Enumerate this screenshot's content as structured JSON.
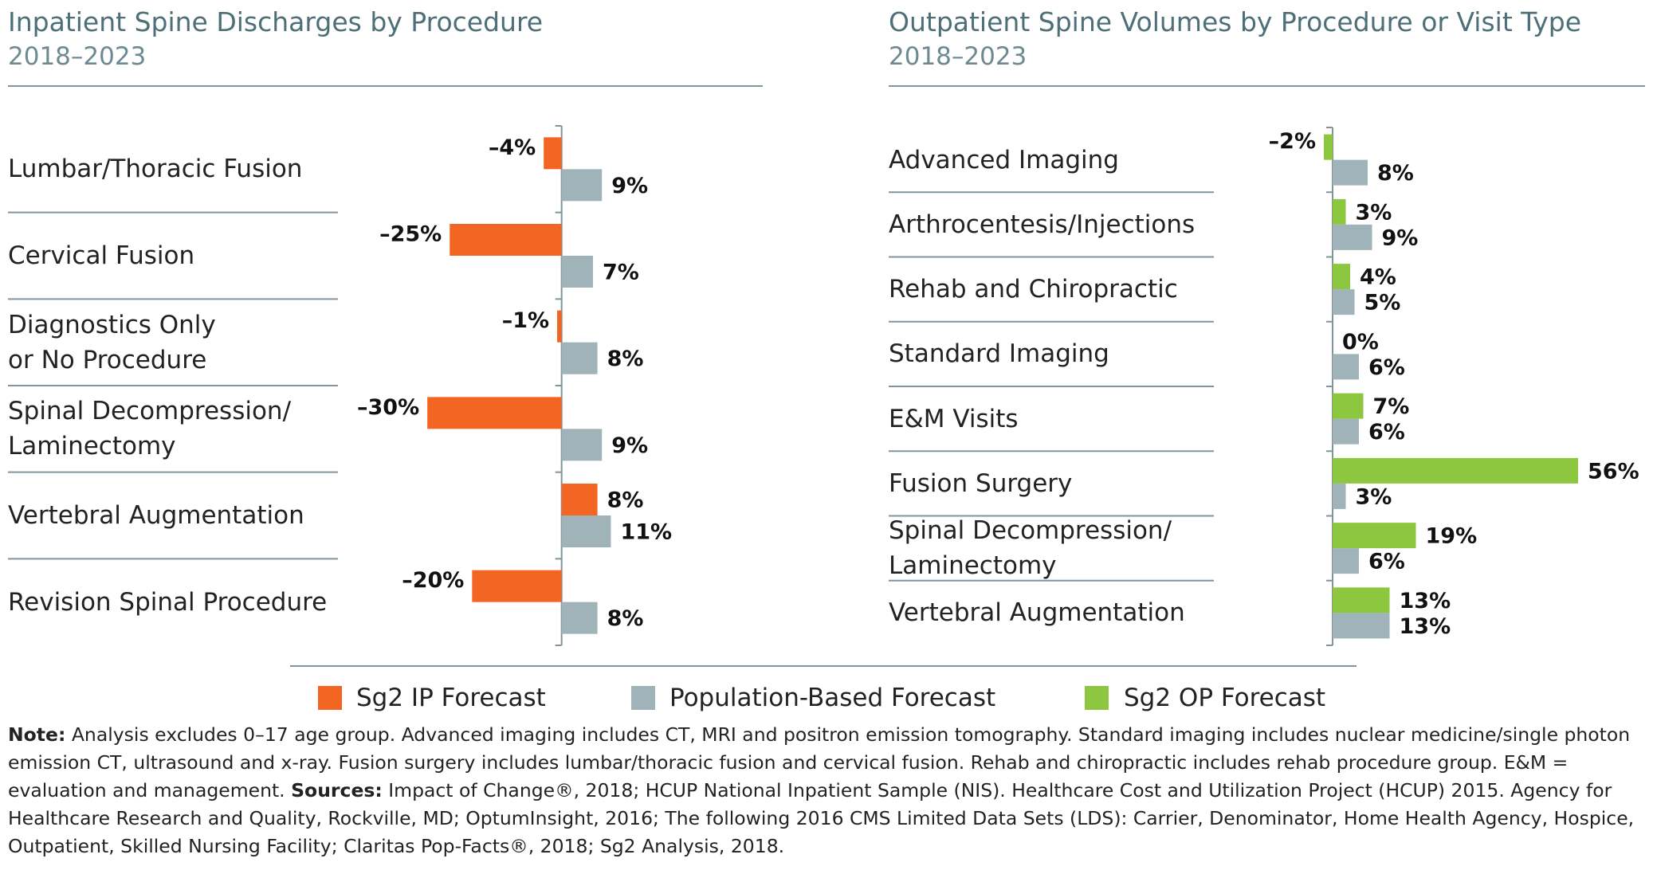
{
  "chart_data": [
    {
      "type": "hbar",
      "title": "Inpatient Spine Discharges by Procedure",
      "subtitle": "2018–2023",
      "categories": [
        "Lumbar/Thoracic Fusion",
        "Cervical Fusion",
        "Diagnostics Only\nor No Procedure",
        "Spinal Decompression/\nLaminectomy",
        "Vertebral Augmentation",
        "Revision Spinal Procedure"
      ],
      "series": [
        {
          "name": "Sg2 IP Forecast",
          "color": "#f26522",
          "values": [
            -4,
            -25,
            -1,
            -30,
            8,
            -20
          ],
          "value_labels": [
            "–4%",
            "–25%",
            "–1%",
            "–30%",
            "8%",
            "–20%"
          ]
        },
        {
          "name": "Population-Based Forecast",
          "color": "#9fb3b8",
          "values": [
            9,
            7,
            8,
            9,
            11,
            8
          ],
          "value_labels": [
            "9%",
            "7%",
            "8%",
            "9%",
            "11%",
            "8%"
          ]
        }
      ],
      "xlim": [
        -40,
        20
      ]
    },
    {
      "type": "hbar",
      "title": "Outpatient Spine Volumes by Procedure or Visit Type",
      "subtitle": "2018–2023",
      "categories": [
        "Advanced Imaging",
        "Arthrocentesis/Injections",
        "Rehab and Chiropractic",
        "Standard Imaging",
        "E&M Visits",
        "Fusion Surgery",
        "Spinal Decompression/\nLaminectomy",
        "Vertebral Augmentation"
      ],
      "series": [
        {
          "name": "Sg2 OP Forecast",
          "color": "#8dc63f",
          "values": [
            -2,
            3,
            4,
            0,
            7,
            56,
            19,
            13
          ],
          "value_labels": [
            "–2%",
            "3%",
            "4%",
            "0%",
            "7%",
            "56%",
            "19%",
            "13%"
          ]
        },
        {
          "name": "Population-Based Forecast",
          "color": "#9fb3b8",
          "values": [
            8,
            9,
            5,
            6,
            6,
            3,
            6,
            13
          ],
          "value_labels": [
            "8%",
            "9%",
            "5%",
            "6%",
            "6%",
            "3%",
            "6%",
            "13%"
          ]
        }
      ],
      "xlim": [
        -10,
        58
      ]
    }
  ],
  "footnote": {
    "note_label": "Note:",
    "note_text": " Analysis excludes 0–17 age group. Advanced imaging includes CT, MRI and positron emission tomography. Standard imaging includes nuclear medicine/single photon emission CT, ultrasound and x-ray. Fusion surgery includes lumbar/thoracic fusion and cervical fusion. Rehab and chiropractic includes rehab procedure group. E&M = evaluation and management. ",
    "sources_label": "Sources:",
    "sources_text": " Impact of Change®, 2018; HCUP National Inpatient Sample (NIS). Healthcare Cost and Utilization Project (HCUP) 2015. Agency for Healthcare Research and Quality, Rockville, MD; OptumInsight, 2016; The following 2016 CMS Limited Data Sets (LDS): Carrier, Denominator, Home Health Agency, Hospice, Outpatient, Skilled Nursing Facility; Claritas Pop-Facts®, 2018; Sg2 Analysis, 2018."
  }
}
